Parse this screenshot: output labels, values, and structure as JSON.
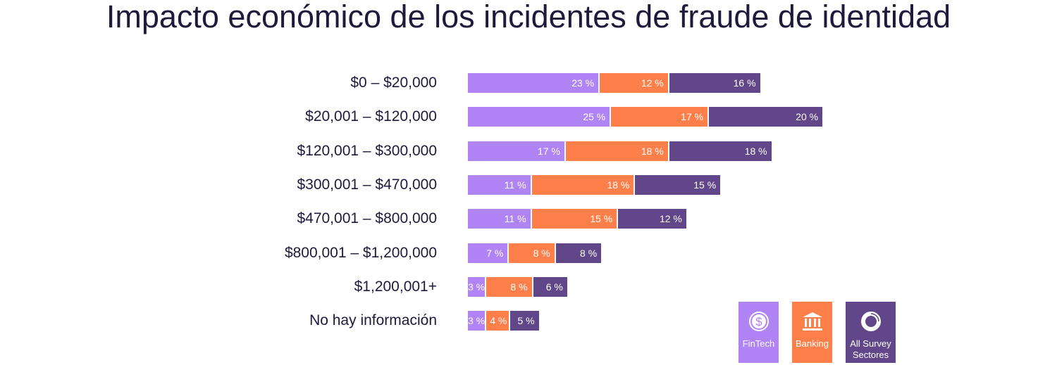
{
  "chart_data": {
    "type": "bar",
    "stacked": true,
    "orientation": "horizontal",
    "title": "Impacto económico de los incidentes de fraude de identidad",
    "categories": [
      "$0 – $20,000",
      "$20,001 – $120,000",
      "$120,001 – $300,000",
      "$300,001 – $470,000",
      "$470,001 – $800,000",
      "$800,001 – $1,200,000",
      "$1,200,001+",
      "No hay información"
    ],
    "series": [
      {
        "name": "FinTech",
        "color": "#b084f5",
        "values": [
          23,
          25,
          17,
          11,
          11,
          7,
          3,
          3
        ]
      },
      {
        "name": "Banking",
        "color": "#ff7f4a",
        "values": [
          12,
          17,
          18,
          18,
          15,
          8,
          8,
          4
        ]
      },
      {
        "name": "All Survey Sectores",
        "color": "#62468a",
        "values": [
          16,
          20,
          18,
          15,
          12,
          8,
          6,
          5
        ]
      }
    ],
    "value_suffix": " %",
    "legend_position": "bottom-right",
    "grid": false
  },
  "legend": [
    {
      "label": "FinTech",
      "icon": "dollar-circle-icon",
      "color": "#b084f5"
    },
    {
      "label": "Banking",
      "icon": "bank-icon",
      "color": "#ff7f4a"
    },
    {
      "label": "All Survey Sectores",
      "icon": "ring-icon",
      "color": "#62468a"
    }
  ]
}
